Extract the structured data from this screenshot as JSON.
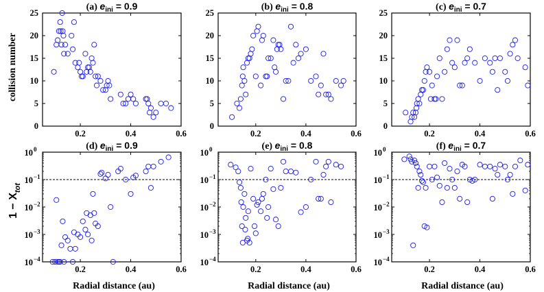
{
  "colors": {
    "marker": "#1a1aee",
    "axis": "#000000",
    "threshold": "#000000"
  },
  "labels": {
    "xlabel": "Radial distance (au)",
    "ylabel_top": "collision number",
    "ylabel_bottom_prefix": "1 − X",
    "ylabel_bottom_sub": "tot"
  },
  "chart_data": [
    {
      "type": "scatter",
      "panel": "(a)",
      "title_prefix": "(a)",
      "title_sub": "ini",
      "title_value": "= 0.9",
      "xlim": [
        0.05,
        0.6
      ],
      "ylim": [
        0,
        25
      ],
      "xticks": [
        0.2,
        0.4,
        0.6
      ],
      "xticklabels": [
        "0.2",
        "0.4",
        "0.6"
      ],
      "yticks": [
        0,
        5,
        10,
        15,
        20,
        25
      ],
      "yticklabels": [
        "0",
        "5",
        "10",
        "15",
        "20",
        "25"
      ],
      "x": [
        0.095,
        0.105,
        0.11,
        0.115,
        0.12,
        0.122,
        0.125,
        0.128,
        0.13,
        0.133,
        0.135,
        0.14,
        0.15,
        0.165,
        0.17,
        0.175,
        0.18,
        0.19,
        0.195,
        0.2,
        0.205,
        0.21,
        0.22,
        0.225,
        0.23,
        0.235,
        0.24,
        0.245,
        0.25,
        0.255,
        0.26,
        0.265,
        0.27,
        0.28,
        0.29,
        0.3,
        0.305,
        0.31,
        0.315,
        0.32,
        0.36,
        0.37,
        0.38,
        0.39,
        0.4,
        0.41,
        0.42,
        0.46,
        0.465,
        0.47,
        0.475,
        0.48,
        0.49,
        0.5,
        0.52,
        0.54,
        0.56
      ],
      "y": [
        12,
        18,
        19,
        21,
        23,
        21,
        18,
        25,
        21,
        20,
        16,
        18,
        16,
        20,
        17,
        23,
        14,
        13,
        14,
        12,
        11,
        11,
        16,
        12,
        13,
        13,
        12,
        15,
        14,
        18,
        11,
        9,
        11,
        10,
        8,
        8,
        9,
        10,
        9,
        6,
        7,
        5,
        5,
        6,
        7,
        6,
        5,
        6,
        6,
        5,
        3,
        4,
        2,
        3,
        5,
        5,
        4
      ]
    },
    {
      "type": "scatter",
      "panel": "(b)",
      "title_prefix": "(b)",
      "title_sub": "ini",
      "title_value": "= 0.8",
      "xlim": [
        0.05,
        0.6
      ],
      "ylim": [
        0,
        25
      ],
      "xticks": [
        0.2,
        0.4,
        0.6
      ],
      "xticklabels": [
        "0.2",
        "0.4",
        "0.6"
      ],
      "yticks": [
        0,
        5,
        10,
        15,
        20,
        25
      ],
      "yticklabels": [
        "0",
        "5",
        "10",
        "15",
        "20",
        "25"
      ],
      "x": [
        0.105,
        0.125,
        0.135,
        0.14,
        0.145,
        0.148,
        0.15,
        0.155,
        0.16,
        0.165,
        0.17,
        0.175,
        0.18,
        0.185,
        0.19,
        0.2,
        0.205,
        0.21,
        0.22,
        0.225,
        0.23,
        0.24,
        0.245,
        0.25,
        0.26,
        0.27,
        0.275,
        0.28,
        0.285,
        0.29,
        0.295,
        0.3,
        0.31,
        0.32,
        0.33,
        0.34,
        0.35,
        0.36,
        0.37,
        0.38,
        0.4,
        0.42,
        0.44,
        0.45,
        0.46,
        0.47,
        0.48,
        0.49,
        0.5,
        0.52,
        0.54,
        0.55
      ],
      "y": [
        2,
        5,
        4,
        6,
        9,
        11,
        13,
        10,
        7,
        14,
        15,
        15,
        16,
        17,
        20,
        11,
        21,
        22,
        9,
        19,
        20,
        11,
        11,
        15,
        15,
        19,
        13,
        12,
        17,
        18,
        18,
        17,
        6,
        10,
        10,
        22,
        14,
        18,
        15,
        16,
        17,
        10,
        11,
        7,
        9,
        16,
        7,
        7,
        6,
        10,
        9,
        10
      ]
    },
    {
      "type": "scatter",
      "panel": "(c)",
      "title_prefix": "(c)",
      "title_sub": "ini",
      "title_value": "= 0.7",
      "xlim": [
        0.05,
        0.6
      ],
      "ylim": [
        0,
        25
      ],
      "xticks": [
        0.2,
        0.4,
        0.6
      ],
      "xticklabels": [
        "0.2",
        "0.4",
        "0.6"
      ],
      "yticks": [
        0,
        5,
        10,
        15,
        20,
        25
      ],
      "yticklabels": [
        "0",
        "5",
        "10",
        "15",
        "20",
        "25"
      ],
      "x": [
        0.105,
        0.125,
        0.13,
        0.135,
        0.14,
        0.145,
        0.148,
        0.15,
        0.155,
        0.16,
        0.165,
        0.17,
        0.175,
        0.18,
        0.185,
        0.19,
        0.2,
        0.205,
        0.21,
        0.22,
        0.225,
        0.23,
        0.24,
        0.25,
        0.26,
        0.27,
        0.28,
        0.29,
        0.3,
        0.31,
        0.32,
        0.33,
        0.34,
        0.35,
        0.36,
        0.38,
        0.4,
        0.42,
        0.44,
        0.45,
        0.46,
        0.47,
        0.48,
        0.5,
        0.51,
        0.52,
        0.53,
        0.54,
        0.55,
        0.58,
        0.59
      ],
      "y": [
        3,
        1,
        2,
        3,
        2,
        3,
        4,
        5,
        6,
        5,
        7,
        8,
        8,
        10,
        12,
        13,
        12,
        6,
        9,
        6,
        6,
        11,
        15,
        6,
        12,
        17,
        19,
        14,
        13,
        19,
        9,
        9,
        14,
        15,
        17,
        14,
        10,
        15,
        14,
        12,
        15,
        8,
        15,
        12,
        10,
        16,
        18,
        19,
        15,
        13,
        9
      ]
    },
    {
      "type": "scatter",
      "panel": "(d)",
      "title_prefix": "(d)",
      "title_sub": "ini",
      "title_value": "= 0.9",
      "yscale": "log",
      "xlim": [
        0.05,
        0.6
      ],
      "ylim": [
        0.0001,
        1
      ],
      "threshold": 0.1,
      "xticks": [
        0.2,
        0.4,
        0.6
      ],
      "xticklabels": [
        "0.2",
        "0.4",
        "0.6"
      ],
      "yticks": [
        0.0001,
        0.001,
        0.01,
        0.1,
        1
      ],
      "yticklabels_base": [
        "10",
        "10",
        "10",
        "10",
        "10"
      ],
      "yticklabels_exp": [
        "−4",
        "−3",
        "−2",
        "−1",
        "0"
      ],
      "x": [
        0.09,
        0.1,
        0.105,
        0.11,
        0.115,
        0.12,
        0.125,
        0.13,
        0.135,
        0.14,
        0.15,
        0.16,
        0.17,
        0.175,
        0.18,
        0.19,
        0.2,
        0.21,
        0.22,
        0.225,
        0.23,
        0.24,
        0.245,
        0.25,
        0.255,
        0.26,
        0.27,
        0.28,
        0.285,
        0.3,
        0.31,
        0.32,
        0.33,
        0.35,
        0.36,
        0.38,
        0.4,
        0.41,
        0.42,
        0.46,
        0.47,
        0.48,
        0.49,
        0.52,
        0.55
      ],
      "y": [
        0.0001,
        0.0001,
        0.018,
        0.0001,
        0.0001,
        0.0001,
        0.0004,
        0.003,
        0.0001,
        0.0008,
        0.0006,
        0.0003,
        0.0001,
        0.0012,
        0.0003,
        0.001,
        0.0008,
        0.003,
        0.0015,
        0.006,
        0.001,
        0.005,
        0.0006,
        0.03,
        0.006,
        0.0025,
        0.002,
        0.16,
        0.18,
        0.11,
        0.15,
        0.01,
        0.0001,
        0.2,
        0.25,
        0.1,
        0.03,
        0.12,
        0.14,
        0.2,
        0.3,
        0.05,
        0.3,
        0.45,
        0.65
      ]
    },
    {
      "type": "scatter",
      "panel": "(e)",
      "title_prefix": "(e)",
      "title_sub": "ini",
      "title_value": "= 0.8",
      "yscale": "log",
      "xlim": [
        0.05,
        0.6
      ],
      "ylim": [
        0.0001,
        1
      ],
      "threshold": 0.1,
      "xticks": [
        0.2,
        0.4,
        0.6
      ],
      "xticklabels": [
        "0.2",
        "0.4",
        "0.6"
      ],
      "yticks": [
        0.0001,
        0.001,
        0.01,
        0.1,
        1
      ],
      "yticklabels_base": [
        "10",
        "10",
        "10",
        "10",
        "10"
      ],
      "yticklabels_exp": [
        "−4",
        "−3",
        "−2",
        "−1",
        "0"
      ],
      "x": [
        0.1,
        0.12,
        0.13,
        0.135,
        0.14,
        0.142,
        0.145,
        0.148,
        0.15,
        0.155,
        0.158,
        0.16,
        0.165,
        0.168,
        0.17,
        0.175,
        0.18,
        0.19,
        0.195,
        0.2,
        0.205,
        0.21,
        0.22,
        0.225,
        0.23,
        0.24,
        0.245,
        0.25,
        0.26,
        0.27,
        0.28,
        0.29,
        0.3,
        0.31,
        0.32,
        0.34,
        0.36,
        0.38,
        0.4,
        0.42,
        0.44,
        0.45,
        0.46,
        0.47,
        0.48,
        0.49,
        0.5,
        0.52,
        0.54
      ],
      "y": [
        0.35,
        0.28,
        0.2,
        0.08,
        0.05,
        0.015,
        0.002,
        0.0005,
        0.01,
        0.03,
        0.0015,
        0.004,
        0.0006,
        0.0007,
        0.007,
        0.0005,
        0.25,
        0.02,
        0.002,
        0.0011,
        0.012,
        0.015,
        0.007,
        0.02,
        0.03,
        0.1,
        0.004,
        0.01,
        0.25,
        0.045,
        0.0035,
        0.002,
        0.05,
        0.45,
        0.2,
        0.2,
        0.18,
        0.0065,
        0.01,
        0.1,
        0.45,
        0.02,
        0.02,
        0.15,
        0.3,
        0.45,
        0.015,
        0.35,
        0.3
      ]
    },
    {
      "type": "scatter",
      "panel": "(f)",
      "title_prefix": "(f)",
      "title_sub": "ini",
      "title_value": "= 0.7",
      "yscale": "log",
      "xlim": [
        0.05,
        0.6
      ],
      "ylim": [
        0.0001,
        1
      ],
      "threshold": 0.1,
      "xticks": [
        0.2,
        0.4,
        0.6
      ],
      "xticklabels": [
        "0.2",
        "0.4",
        "0.6"
      ],
      "yticks": [
        0.0001,
        0.001,
        0.01,
        0.1,
        1
      ],
      "yticklabels_base": [
        "10",
        "10",
        "10",
        "10",
        "10"
      ],
      "yticklabels_exp": [
        "−4",
        "−3",
        "−2",
        "−1",
        "0"
      ],
      "x": [
        0.1,
        0.12,
        0.125,
        0.13,
        0.135,
        0.14,
        0.145,
        0.15,
        0.155,
        0.16,
        0.165,
        0.17,
        0.175,
        0.18,
        0.185,
        0.19,
        0.2,
        0.21,
        0.22,
        0.23,
        0.24,
        0.25,
        0.26,
        0.27,
        0.28,
        0.29,
        0.3,
        0.31,
        0.32,
        0.33,
        0.34,
        0.35,
        0.36,
        0.37,
        0.38,
        0.4,
        0.42,
        0.44,
        0.45,
        0.46,
        0.47,
        0.48,
        0.5,
        0.51,
        0.52,
        0.53,
        0.54,
        0.56,
        0.58,
        0.59
      ],
      "y": [
        0.55,
        0.7,
        0.55,
        0.45,
        0.0004,
        0.5,
        0.4,
        0.3,
        0.05,
        0.2,
        0.15,
        0.09,
        0.08,
        0.002,
        0.05,
        0.0018,
        0.3,
        0.1,
        0.3,
        0.12,
        0.06,
        0.015,
        0.4,
        0.05,
        0.25,
        0.1,
        0.05,
        0.2,
        0.02,
        0.35,
        0.3,
        0.015,
        0.1,
        0.09,
        0.1,
        0.35,
        0.3,
        0.3,
        0.02,
        0.25,
        0.15,
        0.35,
        0.3,
        0.1,
        0.15,
        0.03,
        0.3,
        0.5,
        0.04,
        0.35
      ]
    }
  ]
}
